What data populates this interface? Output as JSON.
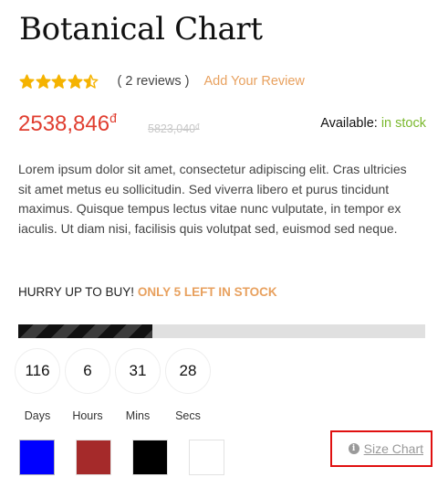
{
  "product": {
    "title": "Botanical Chart",
    "rating": 4.5,
    "rating_max": 5,
    "star_color": "#f5b301",
    "reviews_text": "( 2 reviews )",
    "add_review": "Add Your Review",
    "price": "2538,846",
    "currency": "đ",
    "old_price": "5823,040",
    "old_currency": "đ",
    "availability_label": "Available:",
    "availability_value": "in stock",
    "description": "Lorem ipsum dolor sit amet, consectetur adipiscing elit. Cras ultricies sit amet metus eu sollicitudin. Sed viverra libero et purus tincidunt maximus. Quisque tempus lectus vitae nunc vulputate, in tempor ex iaculis. Ut diam nisi, facilisis quis volutpat sed, euismod sed neque."
  },
  "stock": {
    "hurry_text": "HURRY UP TO BUY!",
    "left_text": "ONLY 5 LEFT IN STOCK",
    "progress_fraction": 0.33
  },
  "countdown": [
    {
      "value": "116",
      "label": "Days"
    },
    {
      "value": "6",
      "label": "Hours"
    },
    {
      "value": "31",
      "label": "Mins"
    },
    {
      "value": "28",
      "label": "Secs"
    }
  ],
  "swatches": [
    {
      "name": "blue",
      "color": "#0000ff",
      "selected": true
    },
    {
      "name": "red",
      "color": "#a52a2a",
      "selected": false
    },
    {
      "name": "black",
      "color": "#000000",
      "selected": false
    },
    {
      "name": "white",
      "color": "#ffffff",
      "selected": false
    }
  ],
  "size_chart": {
    "label": "Size Chart",
    "icon": "info-icon"
  }
}
